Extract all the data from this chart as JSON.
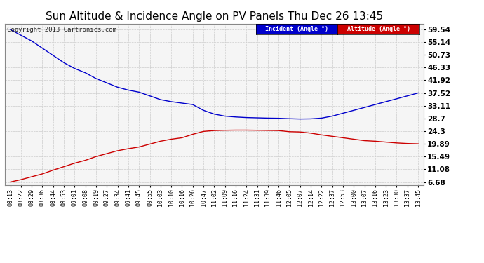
{
  "title": "Sun Altitude & Incidence Angle on PV Panels Thu Dec 26 13:45",
  "copyright": "Copyright 2013 Cartronics.com",
  "background_color": "#ffffff",
  "plot_background": "#f5f5f5",
  "grid_color": "#cccccc",
  "yticks": [
    6.68,
    11.08,
    15.49,
    19.89,
    24.3,
    28.7,
    33.11,
    37.52,
    41.92,
    46.33,
    50.73,
    55.14,
    59.54
  ],
  "xtick_labels": [
    "08:13",
    "08:22",
    "08:29",
    "08:36",
    "08:44",
    "08:53",
    "09:01",
    "09:08",
    "09:19",
    "09:27",
    "09:34",
    "09:41",
    "09:45",
    "09:55",
    "10:03",
    "10:10",
    "10:16",
    "10:26",
    "10:47",
    "11:02",
    "11:09",
    "11:16",
    "11:24",
    "11:31",
    "11:39",
    "11:46",
    "12:05",
    "12:07",
    "12:14",
    "12:22",
    "12:37",
    "12:53",
    "13:00",
    "13:07",
    "13:16",
    "13:23",
    "13:30",
    "13:37",
    "13:45"
  ],
  "incident_label": "Incident (Angle °)",
  "altitude_label": "Altitude (Angle °)",
  "incident_bg": "#0000cc",
  "altitude_bg": "#cc0000",
  "blue_line_color": "#0000cc",
  "red_line_color": "#cc0000",
  "incident_y": [
    59.5,
    57.5,
    55.5,
    53.0,
    50.5,
    48.0,
    46.0,
    44.5,
    42.5,
    41.0,
    39.5,
    38.5,
    37.8,
    36.5,
    35.2,
    34.5,
    34.0,
    33.5,
    31.5,
    30.2,
    29.5,
    29.2,
    29.0,
    28.9,
    28.8,
    28.75,
    28.6,
    28.5,
    28.55,
    28.8,
    29.5,
    30.5,
    31.5,
    32.5,
    33.5,
    34.5,
    35.5,
    36.5,
    37.52
  ],
  "altitude_y": [
    6.68,
    7.5,
    8.5,
    9.5,
    10.8,
    12.0,
    13.2,
    14.2,
    15.5,
    16.5,
    17.5,
    18.2,
    18.8,
    19.8,
    20.8,
    21.5,
    22.0,
    23.2,
    24.2,
    24.5,
    24.6,
    24.65,
    24.65,
    24.6,
    24.55,
    24.5,
    24.1,
    24.0,
    23.6,
    23.0,
    22.5,
    22.0,
    21.5,
    21.0,
    20.8,
    20.5,
    20.2,
    20.0,
    19.89
  ],
  "ylim": [
    5.5,
    61.5
  ],
  "title_fontsize": 11,
  "copyright_fontsize": 6.5,
  "tick_label_fontsize": 6,
  "ytick_fontsize": 7.5
}
